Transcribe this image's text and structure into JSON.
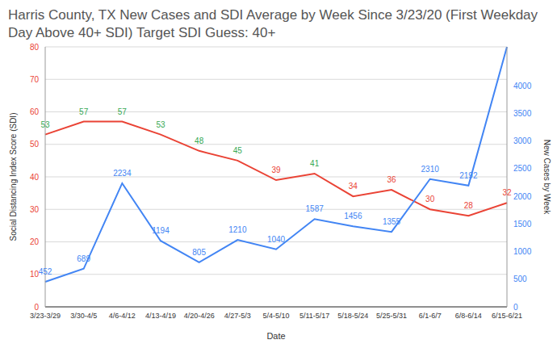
{
  "chart_data": {
    "type": "line",
    "title": "Harris County, TX New Cases and SDI Average by Week Since 3/23/20 (First Weekday Day Above 40+ SDI) Target SDI Guess: 40+",
    "x_label": "Date",
    "y_label": "Social Distancing Index Score (SDI)",
    "y2_label": "New Cases by Week",
    "categories": [
      "3/23-3/29",
      "3/30-4/5",
      "4/6-4/12",
      "4/13-4/19",
      "4/20-4/26",
      "4/27-5/3",
      "5/4-5/10",
      "5/11-5/17",
      "5/18-5/24",
      "5/25-5/31",
      "6/1-6/7",
      "6/8-6/14",
      "6/15-6/21"
    ],
    "series": [
      {
        "type": "line",
        "color": "#ea4335",
        "colors": [
          "#34a853",
          "#34a853",
          "#34a853",
          "#34a853",
          "#34a853",
          "#34a853",
          "#ea4335",
          "#34a853",
          "#ea4335",
          "#ea4335",
          "#ea4335",
          "#ea4335",
          "#ea4335"
        ],
        "values": [
          53,
          57,
          57,
          53,
          48,
          45,
          39,
          41,
          34,
          36,
          30,
          28,
          32
        ]
      },
      {
        "type": "line",
        "axis": "y2",
        "color": "#4285f4",
        "values": [
          452,
          689,
          2234,
          1194,
          805,
          1210,
          1040,
          1587,
          1456,
          1355,
          2310,
          2192,
          4700
        ],
        "value_labels": [
          "452",
          "689",
          "2234",
          "1194",
          "805",
          "1210",
          "1040",
          "1587",
          "1456",
          "1355",
          "2310",
          "2192",
          null
        ]
      }
    ],
    "ylim": [
      0,
      80
    ],
    "yticks": [
      0,
      10,
      20,
      30,
      40,
      50,
      60,
      70,
      80
    ],
    "y2lim": [
      0,
      4700
    ],
    "y2ticks": [
      0,
      500,
      1000,
      1500,
      2000,
      2500,
      3000,
      3500,
      4000
    ],
    "grid": true,
    "data_labels": true
  }
}
